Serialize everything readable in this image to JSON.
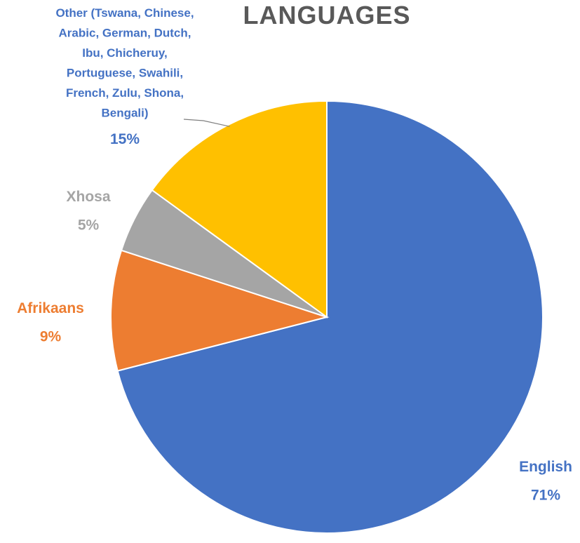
{
  "chart_data": {
    "type": "pie",
    "title": "LANGUAGES",
    "colors": {
      "English": "#4472C4",
      "Afrikaans": "#ED7D31",
      "Xhosa": "#A5A5A5",
      "Other": "#FFC000",
      "other_label": "#4472C4"
    },
    "slices": [
      {
        "name": "English",
        "label_lines": [
          "English"
        ],
        "value": 71,
        "pct_text": "71%"
      },
      {
        "name": "Afrikaans",
        "label_lines": [
          "Afrikaans"
        ],
        "value": 9,
        "pct_text": "9%"
      },
      {
        "name": "Xhosa",
        "label_lines": [
          "Xhosa"
        ],
        "value": 5,
        "pct_text": "5%"
      },
      {
        "name": "Other",
        "label_lines": [
          "Other (Tswana, Chinese,",
          "Arabic, German, Dutch,",
          "Ibu, Chicheruy,",
          "Portuguese, Swahili,",
          "French, Zulu, Shona,",
          "Bengali)"
        ],
        "value": 15,
        "pct_text": "15%"
      }
    ],
    "legend": "none"
  }
}
